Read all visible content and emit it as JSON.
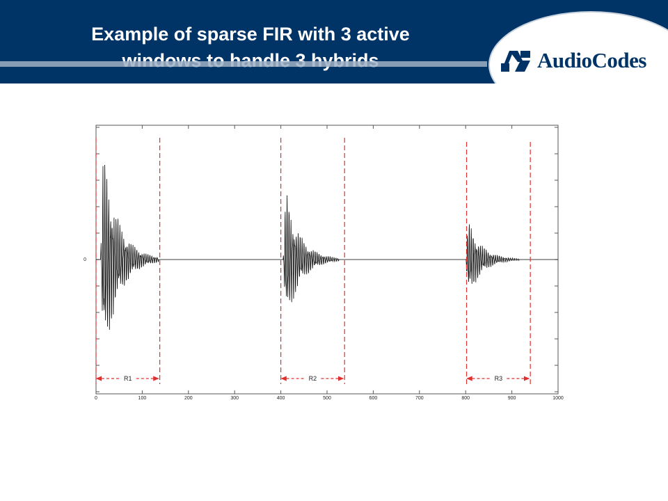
{
  "header": {
    "title_line1": "Example of sparse FIR with 3 active",
    "title_line2": "windows to handle 3 hybrids",
    "logo_text": "AudioCodes"
  },
  "colors": {
    "header_bg": "#003366",
    "signal": "#000000",
    "window_marker": "#e03030"
  },
  "chart_data": {
    "type": "line",
    "title": "",
    "xlabel": "",
    "ylabel": "",
    "xlim": [
      0,
      1000
    ],
    "ylim": [
      -1,
      1
    ],
    "x_ticks": [
      0,
      100,
      200,
      300,
      400,
      500,
      600,
      700,
      800,
      900,
      1000
    ],
    "y_ticks": [
      0
    ],
    "grid": false,
    "series": [
      {
        "impulse_responses": [
          {
            "start": 10,
            "end": 110,
            "peak_amplitude": 0.95
          },
          {
            "start": 405,
            "end": 500,
            "peak_amplitude": 0.6
          },
          {
            "start": 800,
            "end": 890,
            "peak_amplitude": 0.35
          }
        ]
      }
    ],
    "windows": [
      {
        "label": "R1",
        "start": 0,
        "end": 138
      },
      {
        "label": "R2",
        "start": 400,
        "end": 538
      },
      {
        "label": "R3",
        "start": 802,
        "end": 940
      }
    ]
  }
}
